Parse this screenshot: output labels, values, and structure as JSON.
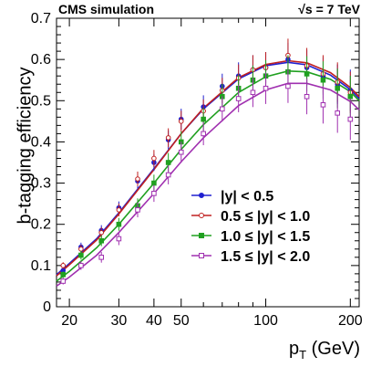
{
  "header": {
    "left": "CMS simulation",
    "right": "√s = 7 TeV"
  },
  "chart_data": {
    "type": "line",
    "title": "",
    "xlabel_main": "p",
    "xlabel_sub": "T",
    "xlabel_unit": " (GeV)",
    "ylabel": "b-tagging efficiency",
    "xscale": "log",
    "xlim": [
      18,
      215
    ],
    "ylim": [
      0,
      0.7
    ],
    "x_ticks": [
      20,
      30,
      40,
      50,
      100,
      200
    ],
    "y_ticks": [
      0,
      0.1,
      0.2,
      0.3,
      0.4,
      0.5,
      0.6,
      0.7
    ],
    "legend_position": "bottom-right",
    "series": [
      {
        "name": "|y| < 0.5",
        "color": "#2020d0",
        "marker": "circle-filled",
        "fit": {
          "x": [
            18,
            20,
            25,
            30,
            40,
            50,
            60,
            80,
            100,
            120,
            140,
            170,
            200,
            215
          ],
          "y": [
            0.078,
            0.105,
            0.165,
            0.228,
            0.335,
            0.42,
            0.48,
            0.553,
            0.585,
            0.593,
            0.587,
            0.562,
            0.527,
            0.505
          ]
        },
        "points": {
          "x": [
            19,
            22,
            26,
            30,
            35,
            40,
            45,
            50,
            60,
            70,
            80,
            90,
            100,
            120,
            140,
            160,
            180,
            200
          ],
          "y": [
            0.088,
            0.145,
            0.185,
            0.24,
            0.305,
            0.35,
            0.405,
            0.455,
            0.485,
            0.535,
            0.56,
            0.575,
            0.58,
            0.6,
            0.58,
            0.56,
            0.54,
            0.525
          ]
        }
      },
      {
        "name": "0.5 ≤ |y| < 1.0",
        "color": "#c02020",
        "marker": "circle-open",
        "fit": {
          "x": [
            18,
            20,
            25,
            30,
            40,
            50,
            60,
            80,
            100,
            120,
            140,
            170,
            200,
            215
          ],
          "y": [
            0.075,
            0.102,
            0.162,
            0.225,
            0.333,
            0.42,
            0.482,
            0.556,
            0.588,
            0.597,
            0.592,
            0.568,
            0.532,
            0.51
          ]
        },
        "points": {
          "x": [
            19,
            22,
            26,
            30,
            35,
            40,
            45,
            50,
            60,
            70,
            80,
            90,
            100,
            120,
            140,
            160,
            180,
            200
          ],
          "y": [
            0.1,
            0.14,
            0.18,
            0.235,
            0.31,
            0.36,
            0.41,
            0.45,
            0.475,
            0.525,
            0.555,
            0.575,
            0.58,
            0.61,
            0.585,
            0.565,
            0.545,
            0.52
          ]
        }
      },
      {
        "name": "1.0 ≤ |y| < 1.5",
        "color": "#20a020",
        "marker": "square-filled",
        "fit": {
          "x": [
            18,
            20,
            25,
            30,
            40,
            50,
            60,
            80,
            100,
            120,
            140,
            170,
            200,
            215
          ],
          "y": [
            0.062,
            0.086,
            0.143,
            0.2,
            0.3,
            0.382,
            0.442,
            0.52,
            0.558,
            0.572,
            0.57,
            0.552,
            0.522,
            0.5
          ]
        },
        "points": {
          "x": [
            19,
            22,
            26,
            30,
            35,
            40,
            45,
            50,
            60,
            70,
            80,
            90,
            100,
            120,
            140,
            160,
            180,
            200
          ],
          "y": [
            0.078,
            0.125,
            0.16,
            0.2,
            0.245,
            0.3,
            0.35,
            0.4,
            0.455,
            0.51,
            0.53,
            0.55,
            0.56,
            0.57,
            0.565,
            0.55,
            0.53,
            0.51
          ]
        }
      },
      {
        "name": "1.5 ≤ |y| < 2.0",
        "color": "#a030b0",
        "marker": "square-open",
        "fit": {
          "x": [
            18,
            20,
            25,
            30,
            40,
            50,
            60,
            80,
            100,
            120,
            140,
            170,
            200,
            215
          ],
          "y": [
            0.05,
            0.072,
            0.125,
            0.18,
            0.275,
            0.352,
            0.41,
            0.488,
            0.526,
            0.542,
            0.542,
            0.526,
            0.498,
            0.478
          ]
        },
        "points": {
          "x": [
            19,
            22,
            26,
            30,
            35,
            40,
            45,
            50,
            60,
            70,
            80,
            90,
            100,
            120,
            140,
            160,
            180,
            200
          ],
          "y": [
            0.062,
            0.1,
            0.12,
            0.165,
            0.235,
            0.275,
            0.32,
            0.375,
            0.42,
            0.48,
            0.505,
            0.52,
            0.53,
            0.535,
            0.51,
            0.49,
            0.47,
            0.455
          ]
        }
      }
    ]
  }
}
